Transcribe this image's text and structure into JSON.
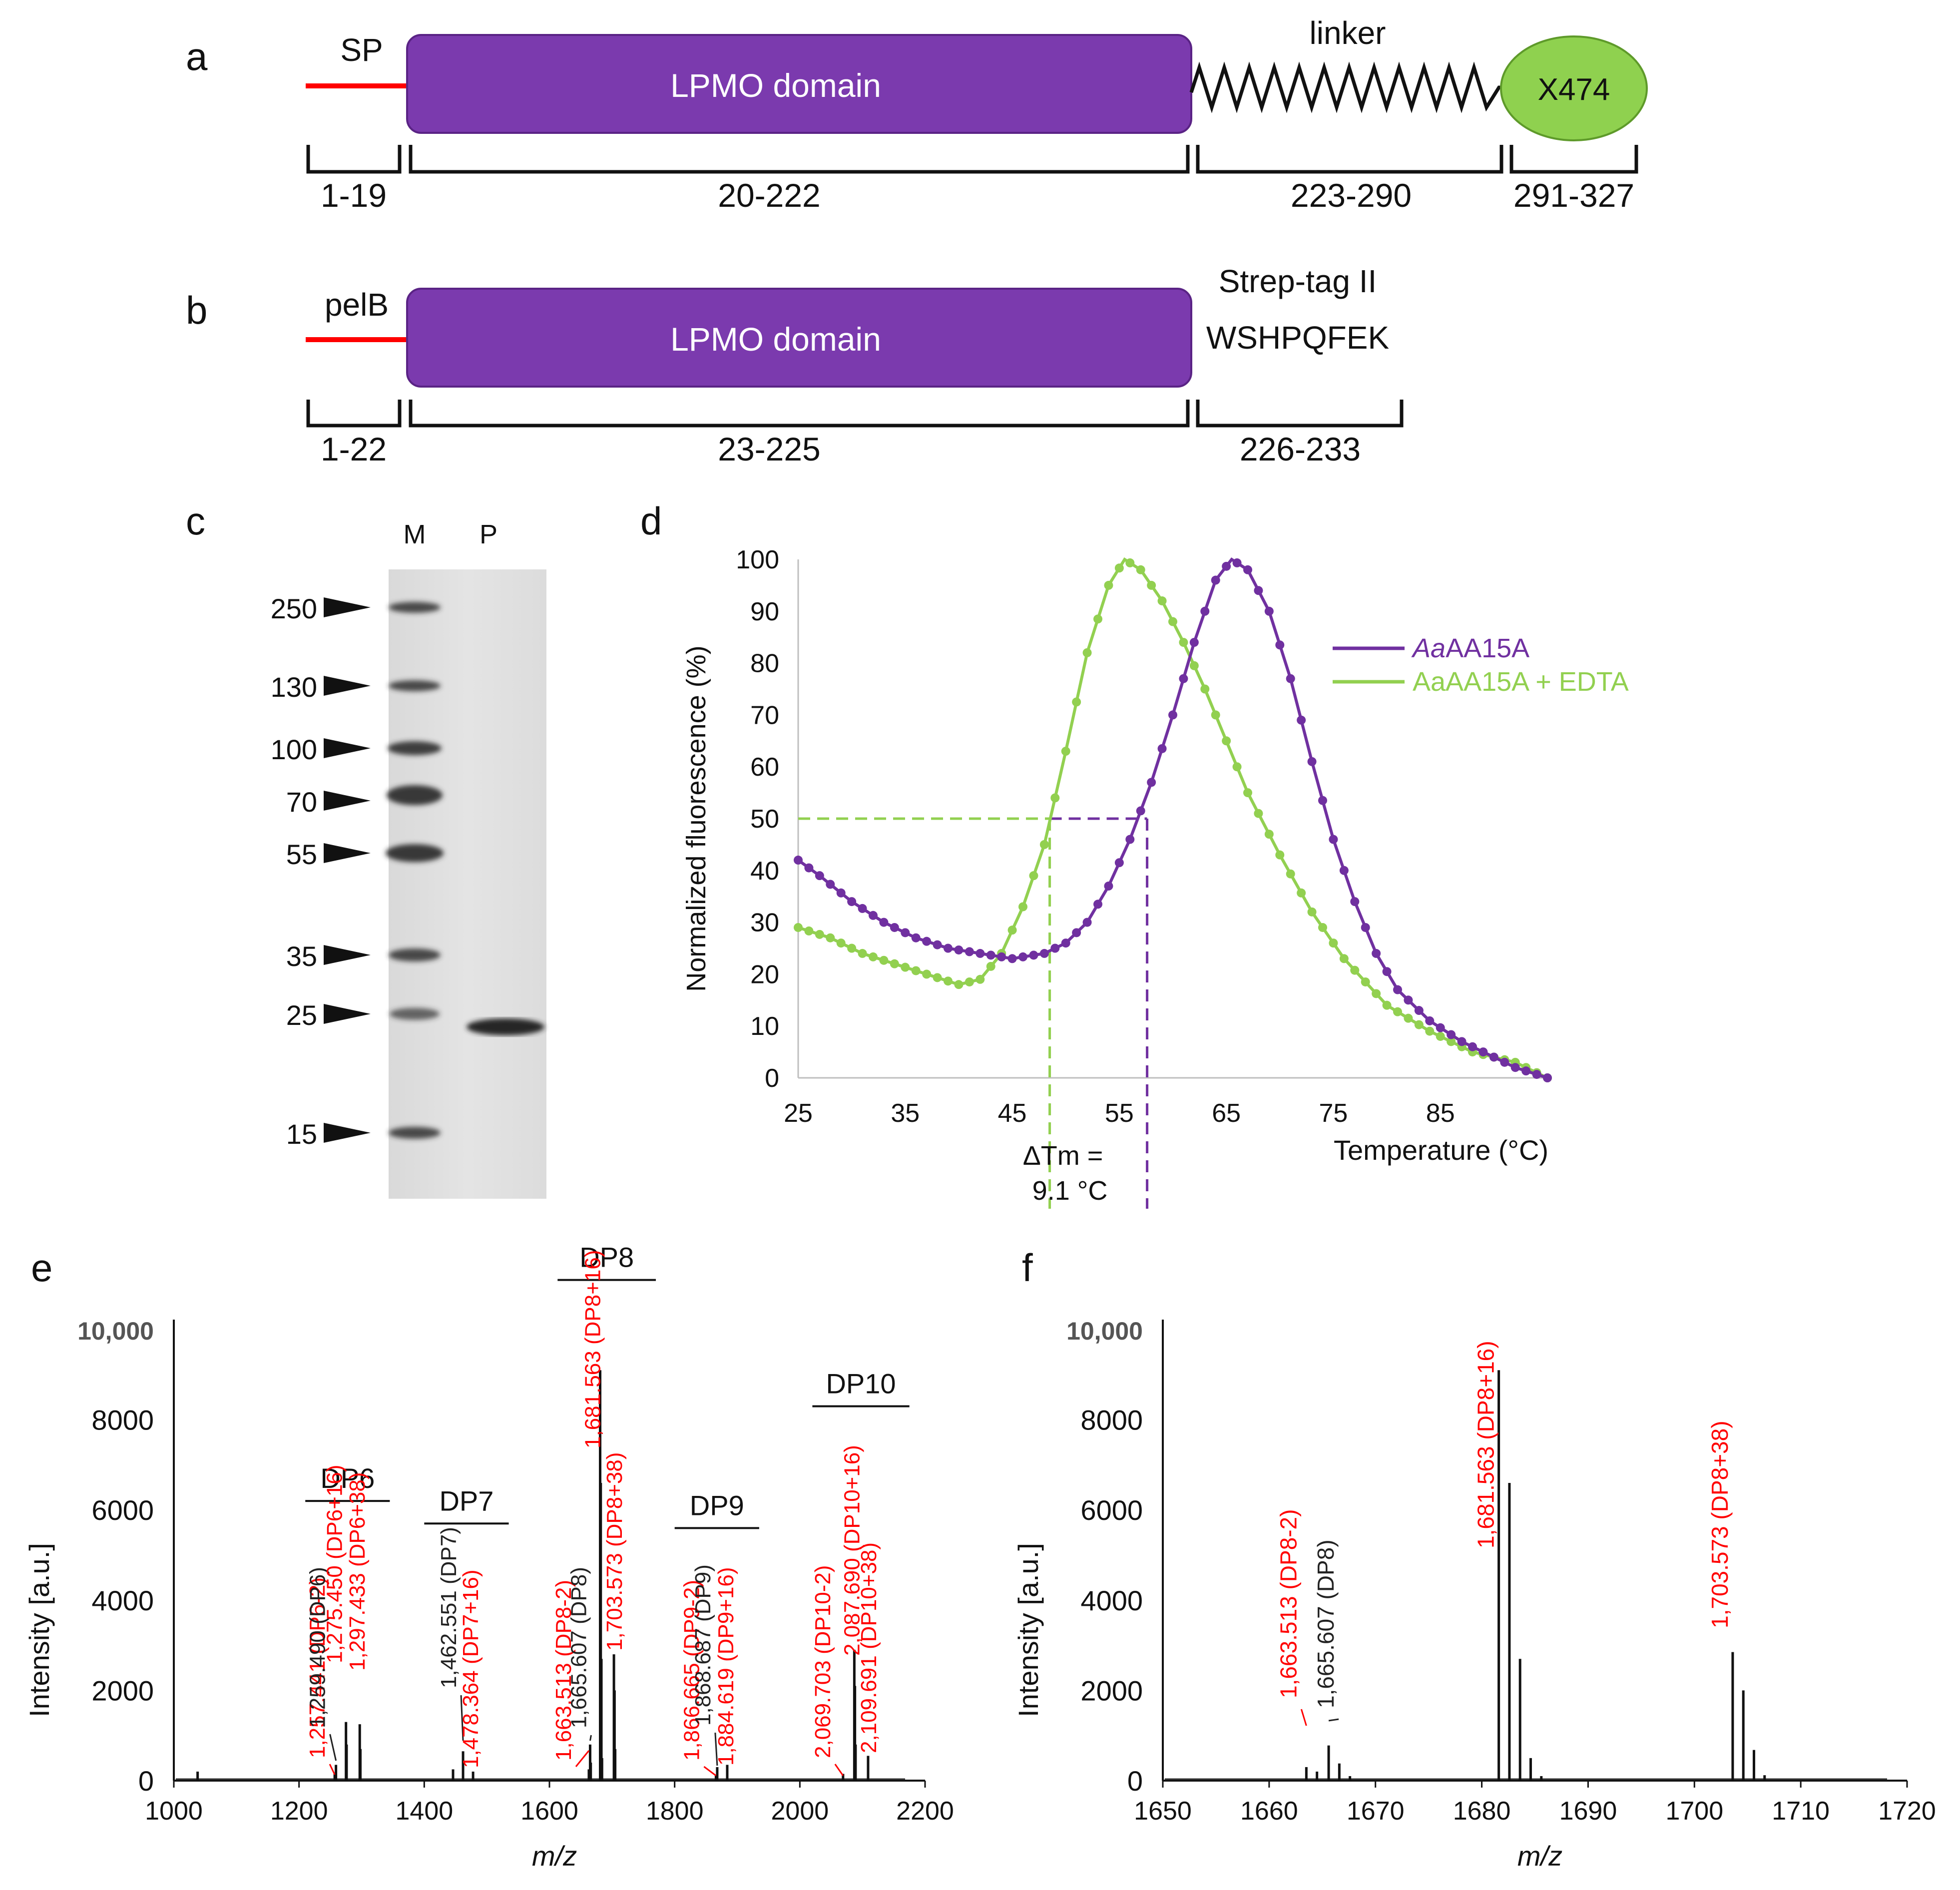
{
  "panels": {
    "a": {
      "letter": "a",
      "sp_label": "SP",
      "domain_label": "LPMO domain",
      "linker_label": "linker",
      "x474_label": "X474",
      "ranges": [
        "1-19",
        "20-222",
        "223-290",
        "291-327"
      ]
    },
    "b": {
      "letter": "b",
      "pelb_label": "pelB",
      "domain_label": "LPMO domain",
      "tag_label": "Strep-tag II",
      "tag_seq": "WSHPQFEK",
      "ranges": [
        "1-22",
        "23-225",
        "226-233"
      ]
    },
    "c": {
      "letter": "c",
      "lane_m": "M",
      "lane_p": "P",
      "markers": [
        "250",
        "130",
        "100",
        "70",
        "55",
        "35",
        "25",
        "15"
      ]
    },
    "d": {
      "letter": "d",
      "delta_tm_line1": "ΔTm =",
      "delta_tm_line2": "9.1 °C"
    },
    "e": {
      "letter": "e"
    },
    "f": {
      "letter": "f"
    }
  },
  "colors": {
    "purple": "#7030A0",
    "green": "#92D050",
    "domain_fill": "#7B3AAE",
    "x474_fill": "#8FD14F",
    "sp_red": "#FF0000",
    "label_red": "#FF0000"
  },
  "chart_data": [
    {
      "id": "d",
      "type": "line",
      "title": "",
      "xlabel": "Temperature (°C)",
      "ylabel": "Normalized fluorescence (%)",
      "xlim": [
        25,
        95
      ],
      "ylim": [
        0,
        100
      ],
      "xticks": [
        25,
        35,
        45,
        55,
        65,
        75,
        85
      ],
      "yticks": [
        0,
        10,
        20,
        30,
        40,
        50,
        60,
        70,
        80,
        90,
        100
      ],
      "series": [
        {
          "name": "AaAA15A",
          "name_italic": "Aa",
          "name_rest": "AA15A",
          "color": "#7030A0",
          "x": [
            25,
            27,
            30,
            33,
            36,
            39,
            42,
            45,
            48,
            50,
            52,
            54,
            56,
            58,
            60,
            62,
            64,
            65.5,
            67,
            69,
            71,
            73,
            75,
            77,
            79,
            81,
            84,
            87,
            90,
            92,
            95
          ],
          "y": [
            42,
            39,
            34,
            30,
            27,
            25,
            24,
            23,
            24,
            26,
            30,
            37,
            46,
            57,
            70,
            84,
            96,
            100,
            98,
            90,
            77,
            61,
            46,
            34,
            24,
            17,
            11,
            7,
            4,
            2,
            0
          ]
        },
        {
          "name": "AaAA15A + EDTA",
          "color": "#92D050",
          "x": [
            25,
            28,
            31,
            34,
            37,
            40,
            42,
            44,
            46,
            48,
            50,
            52,
            54,
            55.5,
            57,
            59,
            61,
            63,
            65,
            67,
            70,
            73,
            76,
            80,
            84,
            88,
            92,
            95
          ],
          "y": [
            29,
            27,
            24,
            22,
            20,
            18,
            19,
            24,
            33,
            45,
            63,
            82,
            95,
            100,
            98,
            92,
            84,
            75,
            65,
            55,
            43,
            32,
            23,
            14,
            9,
            5,
            3,
            0
          ]
        }
      ],
      "guides": {
        "y": 50,
        "tm_edta": 48.5,
        "tm_native": 57.6
      }
    },
    {
      "id": "e",
      "type": "bar",
      "title": "",
      "xlabel": "m/z",
      "ylabel": "Intensity [a.u.]",
      "xlim": [
        1000,
        2200
      ],
      "ylim": [
        0,
        10000
      ],
      "xticks": [
        1000,
        1200,
        1400,
        1600,
        1800,
        2000,
        2200
      ],
      "ytick_labels": [
        "0",
        "2000",
        "4000",
        "6000",
        "8000",
        "10,000"
      ],
      "yticks": [
        0,
        2000,
        4000,
        6000,
        8000,
        10000
      ],
      "peaks": [
        {
          "x": 1038,
          "y": 200
        },
        {
          "x": 1257,
          "y": 150
        },
        {
          "x": 1259,
          "y": 350
        },
        {
          "x": 1275,
          "y": 1300
        },
        {
          "x": 1276,
          "y": 800
        },
        {
          "x": 1297,
          "y": 1250
        },
        {
          "x": 1298,
          "y": 700
        },
        {
          "x": 1446,
          "y": 250
        },
        {
          "x": 1462,
          "y": 650
        },
        {
          "x": 1478,
          "y": 200
        },
        {
          "x": 1663,
          "y": 250
        },
        {
          "x": 1665,
          "y": 800
        },
        {
          "x": 1666,
          "y": 400
        },
        {
          "x": 1681,
          "y": 9100
        },
        {
          "x": 1682,
          "y": 6600
        },
        {
          "x": 1683,
          "y": 2700
        },
        {
          "x": 1684,
          "y": 500
        },
        {
          "x": 1703,
          "y": 2800
        },
        {
          "x": 1704,
          "y": 2000
        },
        {
          "x": 1705,
          "y": 700
        },
        {
          "x": 1866,
          "y": 120
        },
        {
          "x": 1868,
          "y": 300
        },
        {
          "x": 1884,
          "y": 350
        },
        {
          "x": 2069,
          "y": 150
        },
        {
          "x": 2087,
          "y": 2900
        },
        {
          "x": 2088,
          "y": 2100
        },
        {
          "x": 2089,
          "y": 800
        },
        {
          "x": 2109,
          "y": 550
        }
      ],
      "groups": [
        {
          "label": "DP6",
          "x1": 1210,
          "x2": 1345,
          "y": 6200
        },
        {
          "label": "DP7",
          "x1": 1400,
          "x2": 1535,
          "y": 5700
        },
        {
          "label": "DP8",
          "x1": 1613,
          "x2": 1770,
          "y": 11100
        },
        {
          "label": "DP9",
          "x1": 1800,
          "x2": 1935,
          "y": 5600
        },
        {
          "label": "DP10",
          "x1": 2020,
          "x2": 2175,
          "y": 8300
        }
      ],
      "annotations": [
        {
          "x": 1257,
          "text": "1,257.441",
          "tag": "(DP6-2)",
          "color": "red"
        },
        {
          "x": 1259,
          "text": "1,259.490",
          "tag": "(DP6)",
          "color": "black"
        },
        {
          "x": 1275,
          "text": "1,275.450",
          "tag": "(DP6+16)",
          "color": "red"
        },
        {
          "x": 1297,
          "text": "1,297.433",
          "tag": "(DP6+38)",
          "color": "red"
        },
        {
          "x": 1462,
          "text": "1,462.551",
          "tag": "(DP7)",
          "color": "black"
        },
        {
          "x": 1478,
          "text": "1,478.364",
          "tag": "(DP7+16)",
          "color": "red"
        },
        {
          "x": 1663,
          "text": "1,663.513",
          "tag": "(DP8-2)",
          "color": "red"
        },
        {
          "x": 1665,
          "text": "1,665.607",
          "tag": "(DP8)",
          "color": "black"
        },
        {
          "x": 1681,
          "text": "1,681.563",
          "tag": "(DP8+16)",
          "color": "red"
        },
        {
          "x": 1703,
          "text": "1,703.573",
          "tag": "(DP8+38)",
          "color": "red"
        },
        {
          "x": 1866,
          "text": "1,866.665",
          "tag": "(DP9-2)",
          "color": "red"
        },
        {
          "x": 1868,
          "text": "1,868.687",
          "tag": "(DP9)",
          "color": "black"
        },
        {
          "x": 1884,
          "text": "1,884.619",
          "tag": "(DP9+16)",
          "color": "red"
        },
        {
          "x": 2069,
          "text": "2,069.703",
          "tag": "(DP10-2)",
          "color": "red"
        },
        {
          "x": 2087,
          "text": "2,087.690",
          "tag": "(DP10+16)",
          "color": "red"
        },
        {
          "x": 2109,
          "text": "2,109.691",
          "tag": "(DP10+38)",
          "color": "red"
        }
      ]
    },
    {
      "id": "f",
      "type": "bar",
      "title": "",
      "xlabel": "m/z",
      "ylabel": "Intensity [a.u.]",
      "xlim": [
        1650,
        1720
      ],
      "ylim": [
        0,
        10000
      ],
      "xticks": [
        1650,
        1660,
        1670,
        1680,
        1690,
        1700,
        1710,
        1720
      ],
      "ytick_labels": [
        "0",
        "2000",
        "4000",
        "6000",
        "8000",
        "10,000"
      ],
      "yticks": [
        0,
        2000,
        4000,
        6000,
        8000,
        10000
      ],
      "peaks": [
        {
          "x": 1663.5,
          "y": 300
        },
        {
          "x": 1664.5,
          "y": 200
        },
        {
          "x": 1665.6,
          "y": 780
        },
        {
          "x": 1666.6,
          "y": 380
        },
        {
          "x": 1667.6,
          "y": 100
        },
        {
          "x": 1681.6,
          "y": 9100
        },
        {
          "x": 1682.6,
          "y": 6600
        },
        {
          "x": 1683.6,
          "y": 2700
        },
        {
          "x": 1684.6,
          "y": 500
        },
        {
          "x": 1685.6,
          "y": 100
        },
        {
          "x": 1703.6,
          "y": 2850
        },
        {
          "x": 1704.6,
          "y": 2000
        },
        {
          "x": 1705.6,
          "y": 680
        },
        {
          "x": 1706.6,
          "y": 120
        }
      ],
      "annotations": [
        {
          "x": 1663.5,
          "text": "1,663.513",
          "tag": "(DP8-2)",
          "color": "red"
        },
        {
          "x": 1665.6,
          "text": "1,665.607",
          "tag": "(DP8)",
          "color": "black"
        },
        {
          "x": 1681.6,
          "text": "1,681.563",
          "tag": "(DP8+16)",
          "color": "red"
        },
        {
          "x": 1703.6,
          "text": "1,703.573",
          "tag": "(DP8+38)",
          "color": "red"
        }
      ]
    }
  ]
}
